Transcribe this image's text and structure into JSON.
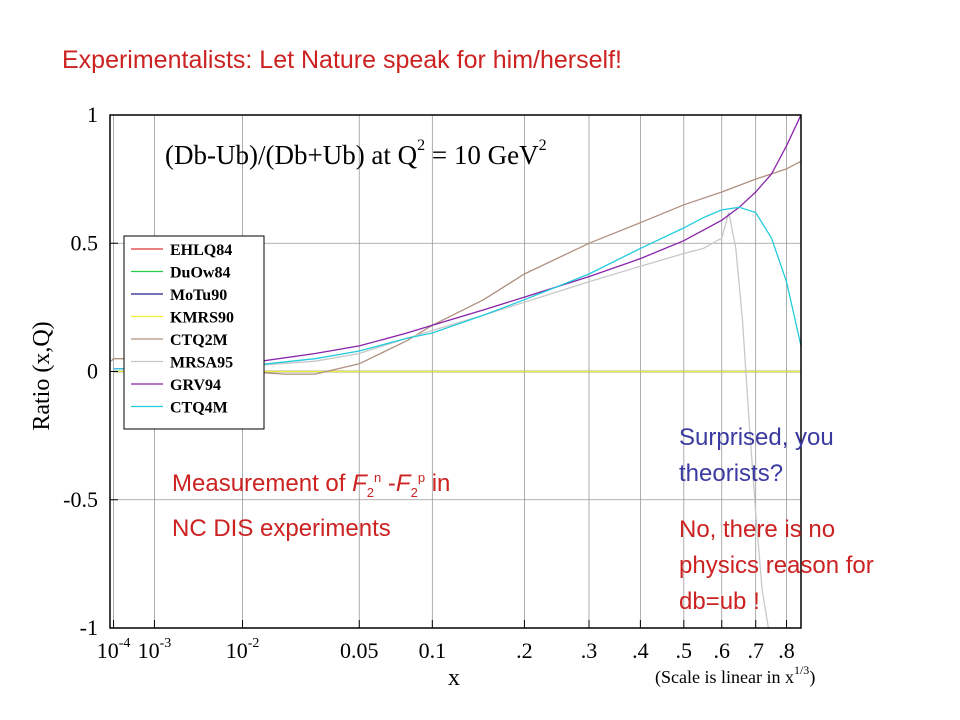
{
  "slide": {
    "title": "Experimentalists:  Let Nature speak for him/herself!",
    "measure_note": {
      "prefix": "Measurement of ",
      "f1": "F",
      "sub1": "2",
      "sup1": "n",
      "dash": " -",
      "f2": "F",
      "sub2": "2",
      "sup2": "p",
      "suffix": " in",
      "line2": "NC DIS experiments"
    },
    "surprised_note": "Surprised, you theorists?",
    "reason_note": "No, there is no physics reason for db=ub !"
  },
  "colors": {
    "title_red": "#cc2222",
    "note_blue": "#3a3aa0",
    "EHLQ84": "#dd3333",
    "DuOw84": "#22cc44",
    "MoTu90": "#222288",
    "KMRS90": "#eeee33",
    "CTQ2M": "#b09080",
    "MRSA95": "#c8c8c8",
    "GRV94": "#8822aa",
    "CTQ4M": "#22ccdd"
  },
  "chart_data": {
    "type": "line",
    "title": "(Db-Ub)/(Db+Ub) at Q",
    "title_sup": "2",
    "title_mid": " = 10 GeV",
    "title_sup2": "2",
    "xlabel": "x",
    "ylabel": "Ratio  (x,Q)",
    "x_scale": "linear in x^(1/3)",
    "x_scale_note": "(Scale is linear in x",
    "x_scale_note_sup": "1/3",
    "x_scale_note_end": ")",
    "xlim": [
      7.29e-05,
      0.85
    ],
    "ylim": [
      -1,
      1
    ],
    "grid": true,
    "legend_position": "left",
    "x_ticks": [
      {
        "value": 0.0001,
        "base": "10",
        "exp": "-4"
      },
      {
        "value": 0.001,
        "base": "10",
        "exp": "-3"
      },
      {
        "value": 0.01,
        "base": "10",
        "exp": "-2"
      },
      {
        "value": 0.05,
        "label": "0.05"
      },
      {
        "value": 0.1,
        "label": "0.1"
      },
      {
        "value": 0.2,
        "label": ".2"
      },
      {
        "value": 0.3,
        "label": ".3"
      },
      {
        "value": 0.4,
        "label": ".4"
      },
      {
        "value": 0.5,
        "label": ".5"
      },
      {
        "value": 0.6,
        "label": ".6"
      },
      {
        "value": 0.7,
        "label": ".7"
      },
      {
        "value": 0.8,
        "label": ".8"
      }
    ],
    "y_ticks": [
      {
        "value": 1,
        "label": "1"
      },
      {
        "value": 0.5,
        "label": "0.5"
      },
      {
        "value": 0,
        "label": "0"
      },
      {
        "value": -0.5,
        "label": "-0.5"
      },
      {
        "value": -1,
        "label": "-1"
      }
    ],
    "series": [
      {
        "name": "EHLQ84",
        "x": [
          0.0001,
          0.85
        ],
        "y": [
          0,
          0
        ]
      },
      {
        "name": "DuOw84",
        "x": [
          0.0001,
          0.85
        ],
        "y": [
          0,
          0
        ]
      },
      {
        "name": "MoTu90",
        "x": [
          0.0001,
          0.85
        ],
        "y": [
          0,
          0
        ]
      },
      {
        "name": "KMRS90",
        "x": [
          0.0001,
          0.85
        ],
        "y": [
          0,
          0
        ]
      },
      {
        "name": "CTQ2M",
        "x": [
          8e-05,
          0.0001,
          0.0003,
          0.001,
          0.003,
          0.01,
          0.02,
          0.03,
          0.05,
          0.08,
          0.1,
          0.15,
          0.2,
          0.3,
          0.4,
          0.5,
          0.6,
          0.7,
          0.8,
          0.85
        ],
        "y": [
          0.04,
          0.05,
          0.05,
          0.04,
          0.02,
          0.0,
          -0.01,
          -0.01,
          0.03,
          0.12,
          0.18,
          0.28,
          0.38,
          0.5,
          0.58,
          0.65,
          0.7,
          0.75,
          0.79,
          0.82
        ]
      },
      {
        "name": "MRSA95",
        "x": [
          0.0001,
          0.001,
          0.01,
          0.03,
          0.05,
          0.08,
          0.1,
          0.15,
          0.2,
          0.3,
          0.4,
          0.5,
          0.55,
          0.6,
          0.62,
          0.64,
          0.66,
          0.68,
          0.7,
          0.72,
          0.74
        ],
        "y": [
          0.01,
          0.015,
          0.02,
          0.04,
          0.07,
          0.13,
          0.16,
          0.22,
          0.27,
          0.35,
          0.41,
          0.46,
          0.48,
          0.52,
          0.62,
          0.48,
          0.2,
          -0.2,
          -0.55,
          -0.85,
          -1.0
        ]
      },
      {
        "name": "GRV94",
        "x": [
          0.0001,
          0.001,
          0.01,
          0.03,
          0.05,
          0.08,
          0.1,
          0.15,
          0.2,
          0.3,
          0.4,
          0.5,
          0.6,
          0.65,
          0.7,
          0.75,
          0.8,
          0.85
        ],
        "y": [
          0.01,
          0.01,
          0.03,
          0.07,
          0.1,
          0.15,
          0.18,
          0.24,
          0.29,
          0.37,
          0.44,
          0.51,
          0.59,
          0.64,
          0.7,
          0.77,
          0.88,
          1.0
        ]
      },
      {
        "name": "CTQ4M",
        "x": [
          0.0001,
          0.001,
          0.01,
          0.03,
          0.05,
          0.08,
          0.1,
          0.15,
          0.2,
          0.3,
          0.4,
          0.5,
          0.55,
          0.6,
          0.65,
          0.7,
          0.75,
          0.8,
          0.85
        ],
        "y": [
          0.01,
          0.01,
          0.02,
          0.05,
          0.08,
          0.13,
          0.15,
          0.22,
          0.28,
          0.38,
          0.48,
          0.56,
          0.6,
          0.63,
          0.64,
          0.62,
          0.52,
          0.35,
          0.1
        ]
      }
    ]
  }
}
